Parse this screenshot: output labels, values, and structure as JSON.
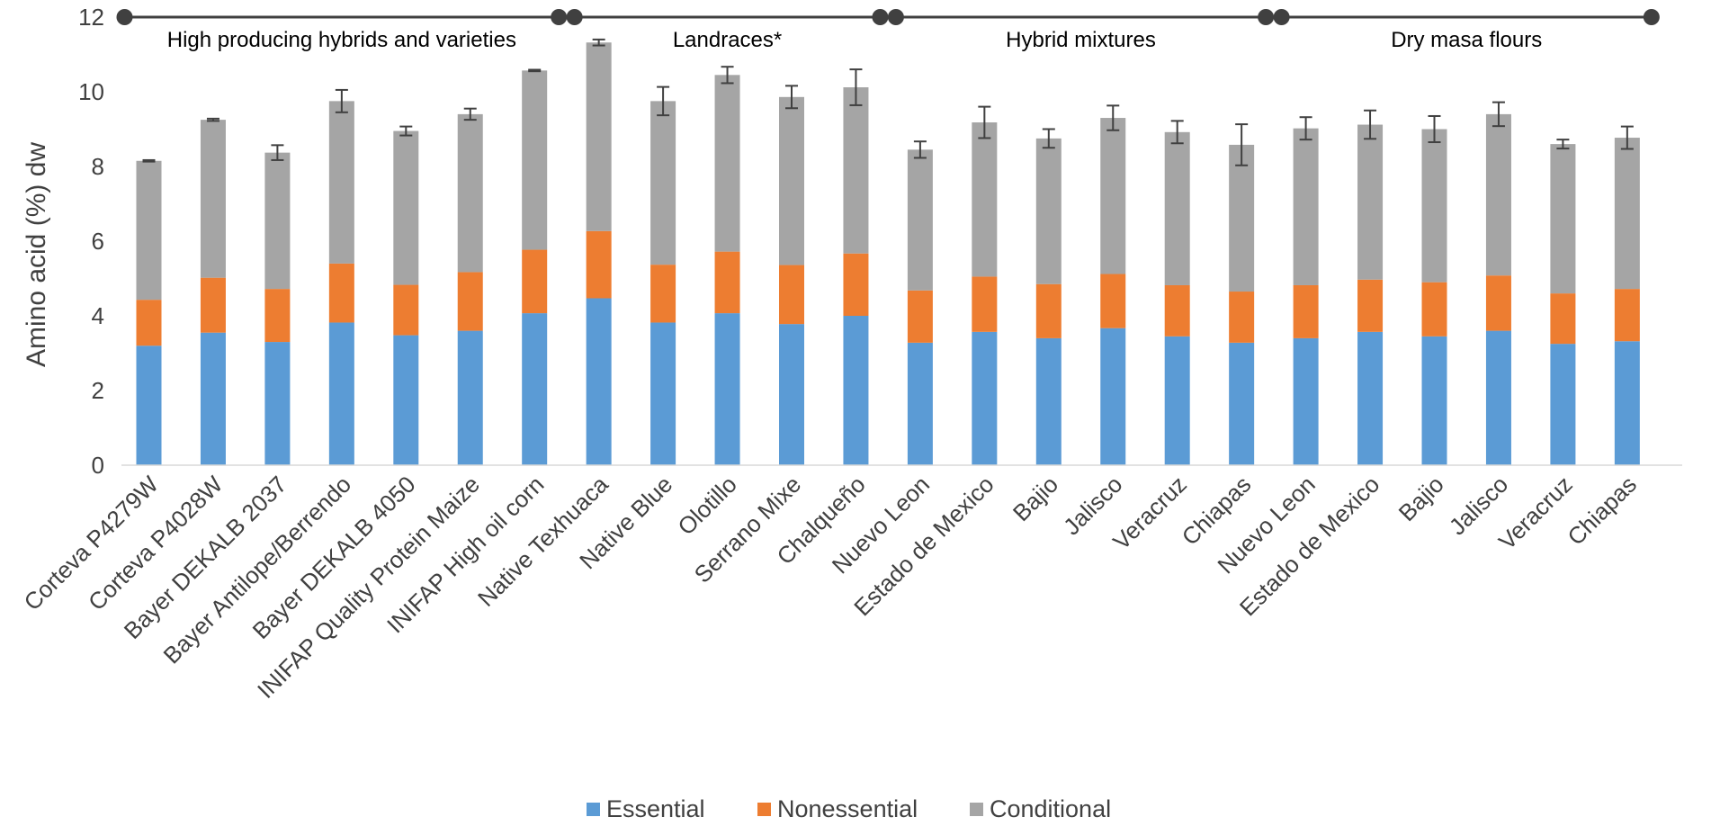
{
  "chart_data": {
    "type": "bar",
    "stacked": true,
    "title": "",
    "xlabel": "",
    "ylabel": "Amino acid (%) dw",
    "ylim": [
      0,
      12
    ],
    "yticks": [
      0,
      2,
      4,
      6,
      8,
      10,
      12
    ],
    "grid": false,
    "legend_position": "bottom-center",
    "categories": [
      "Corteva P4279W",
      "Corteva P4028W",
      "Bayer DEKALB 2037",
      "Bayer Antilope/Berrendo",
      "Bayer DEKALB 4050",
      "INIFAP Quality Protein Maize",
      "INIFAP High oil corn",
      "Native Texhuaca",
      "Native Blue",
      "Olotillo",
      "Serrano Mixe",
      "Chalqueño",
      "Nuevo Leon",
      "Estado de Mexico",
      "Bajio",
      "Jalisco",
      "Veracruz",
      "Chiapas",
      "Nuevo Leon",
      "Estado de Mexico",
      "Bajio",
      "Jalisco",
      "Veracruz",
      "Chiapas"
    ],
    "series": [
      {
        "name": "Essential",
        "color": "#5B9BD5",
        "values": [
          3.2,
          3.55,
          3.3,
          3.82,
          3.48,
          3.6,
          4.07,
          4.47,
          3.82,
          4.07,
          3.78,
          4.0,
          3.28,
          3.57,
          3.4,
          3.67,
          3.45,
          3.28,
          3.4,
          3.57,
          3.45,
          3.6,
          3.25,
          3.32
        ]
      },
      {
        "name": "Nonessential",
        "color": "#ED7D31",
        "values": [
          1.23,
          1.47,
          1.42,
          1.58,
          1.35,
          1.57,
          1.7,
          1.8,
          1.55,
          1.65,
          1.58,
          1.67,
          1.4,
          1.48,
          1.45,
          1.45,
          1.37,
          1.37,
          1.42,
          1.4,
          1.45,
          1.48,
          1.35,
          1.4
        ]
      },
      {
        "name": "Conditional",
        "color": "#A5A5A5",
        "values": [
          3.72,
          4.23,
          3.65,
          4.35,
          4.12,
          4.23,
          4.8,
          5.05,
          4.38,
          4.73,
          4.5,
          4.45,
          3.77,
          4.13,
          3.9,
          4.18,
          4.1,
          3.93,
          4.2,
          4.15,
          4.1,
          4.32,
          4.0,
          4.05
        ]
      }
    ],
    "error_bars": [
      0.02,
      0.03,
      0.2,
      0.3,
      0.12,
      0.15,
      0.02,
      0.08,
      0.38,
      0.22,
      0.3,
      0.48,
      0.22,
      0.42,
      0.25,
      0.33,
      0.3,
      0.55,
      0.3,
      0.38,
      0.35,
      0.32,
      0.12,
      0.3
    ],
    "groups": [
      {
        "label": "High producing hybrids and varieties",
        "start": 0,
        "end": 6
      },
      {
        "label": "Landraces*",
        "start": 7,
        "end": 11
      },
      {
        "label": "Hybrid mixtures",
        "start": 12,
        "end": 17
      },
      {
        "label": "Dry masa flours",
        "start": 18,
        "end": 23
      }
    ]
  }
}
